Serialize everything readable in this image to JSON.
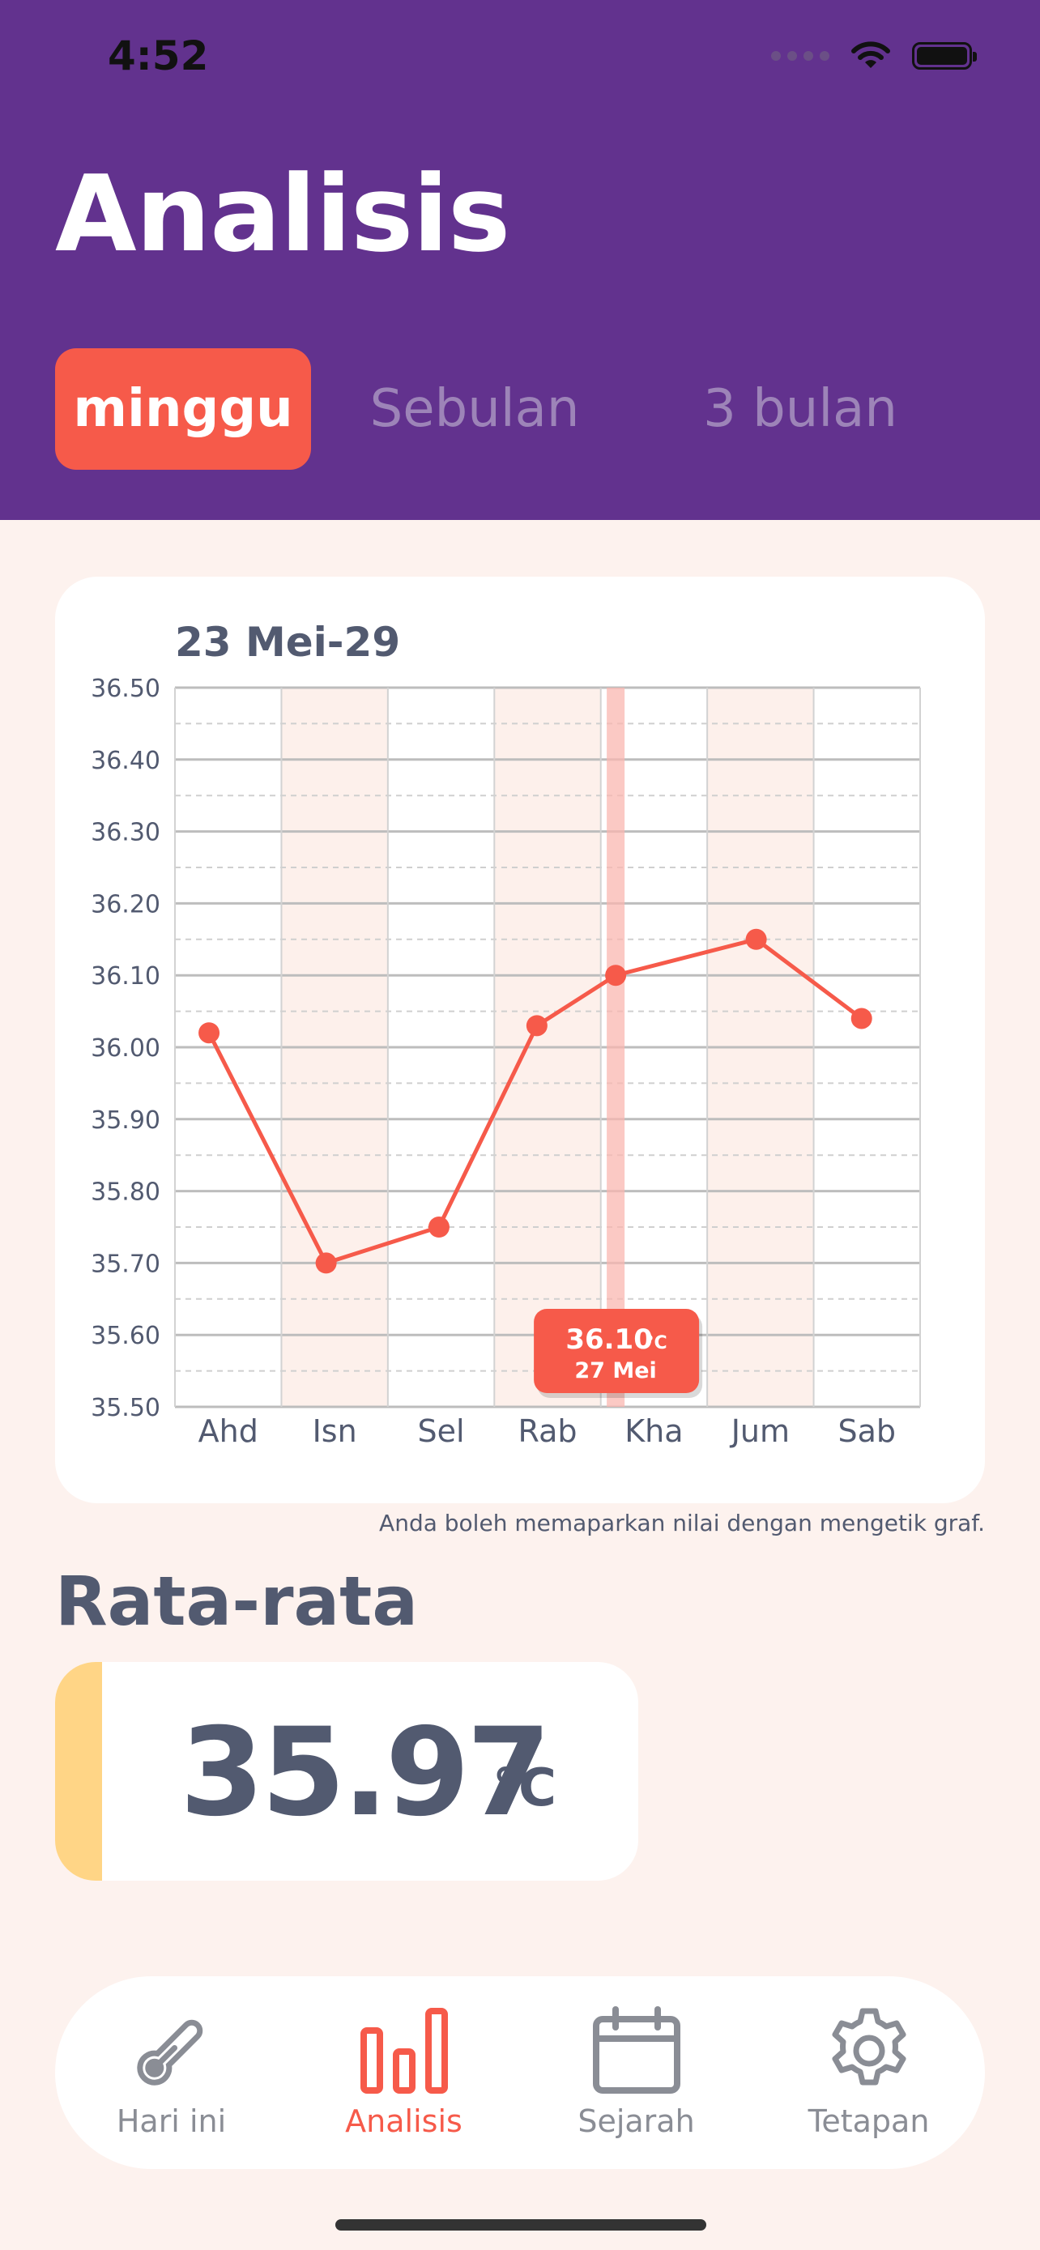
{
  "status": {
    "time": "4:52"
  },
  "header": {
    "title": "Analisis"
  },
  "tabs": [
    {
      "label": "minggu",
      "active": true
    },
    {
      "label": "Sebulan",
      "active": false
    },
    {
      "label": "3 bulan",
      "active": false
    }
  ],
  "chart_data": {
    "type": "line",
    "title": "23 Mei-29",
    "categories": [
      "Ahd",
      "Isn",
      "Sel",
      "Rab",
      "Kha",
      "Jum",
      "Sab"
    ],
    "series": [
      {
        "values": [
          36.02,
          35.7,
          35.75,
          36.03,
          36.1,
          36.15,
          36.04
        ]
      }
    ],
    "ylim": [
      35.5,
      36.5
    ],
    "yticks": [
      "36.50",
      "36.40",
      "36.30",
      "36.20",
      "36.10",
      "36.00",
      "35.90",
      "35.80",
      "35.70",
      "35.60",
      "35.50"
    ],
    "grid": true,
    "selected_index": 4,
    "tooltip": {
      "value": "36.10",
      "unit": "°C",
      "date": "27 Mei"
    },
    "line_color": "#f65a4a",
    "band_color": "#fdf0eb"
  },
  "hint": "Anda boleh memaparkan nilai dengan mengetik graf.",
  "average": {
    "title": "Rata-rata",
    "value": "35.97",
    "unit": "°C"
  },
  "nav": [
    {
      "label": "Hari ini",
      "icon": "thermometer-icon",
      "active": false
    },
    {
      "label": "Analisis",
      "icon": "bar-chart-icon",
      "active": true
    },
    {
      "label": "Sejarah",
      "icon": "calendar-icon",
      "active": false
    },
    {
      "label": "Tetapan",
      "icon": "gear-icon",
      "active": false
    }
  ]
}
